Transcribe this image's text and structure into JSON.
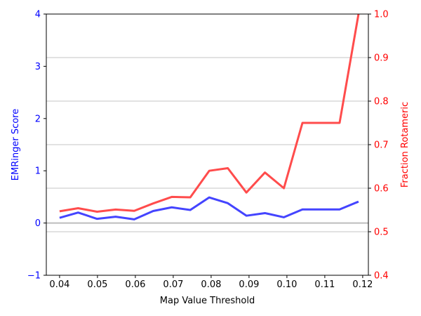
{
  "chart_data": {
    "type": "line",
    "title": "",
    "xlabel": "Map Value Threshold",
    "ylabel_left": "EMRinger Score",
    "ylabel_right": "Fraction Rotameric",
    "xlim": [
      0.0365,
      0.1215
    ],
    "ylim_left": [
      -1,
      4
    ],
    "ylim_right": [
      0.4,
      1.0
    ],
    "x_ticks": [
      "0.04",
      "0.05",
      "0.06",
      "0.07",
      "0.08",
      "0.09",
      "0.10",
      "0.11",
      "0.12"
    ],
    "x_tick_values": [
      0.04,
      0.05,
      0.06,
      0.07,
      0.08,
      0.09,
      0.1,
      0.11,
      0.12
    ],
    "y_ticks_left": [
      "−1",
      "0",
      "1",
      "2",
      "3",
      "4"
    ],
    "y_tick_values_left": [
      -1,
      0,
      1,
      2,
      3,
      4
    ],
    "y_ticks_right": [
      "0.4",
      "0.5",
      "0.6",
      "0.7",
      "0.8",
      "0.9",
      "1.0"
    ],
    "y_tick_values_right": [
      0.4,
      0.5,
      0.6,
      0.7,
      0.8,
      0.9,
      1.0
    ],
    "grid": "horizontal at right-axis ticks",
    "zero_line": true,
    "colors": {
      "left_axis": "#0000ff",
      "right_axis": "#ff0000",
      "emringer_line": "#4444ff",
      "rotameric_line": "#ff4c4c",
      "grid": "#b0b0b0",
      "zero_line": "#bdbdbd"
    },
    "x": [
      0.04,
      0.0449,
      0.0499,
      0.0548,
      0.0597,
      0.0647,
      0.0696,
      0.0745,
      0.0795,
      0.0844,
      0.0893,
      0.0942,
      0.0992,
      0.1041,
      0.109,
      0.1139,
      0.1189
    ],
    "series": [
      {
        "axis": "left",
        "values": [
          0.1,
          0.2,
          0.08,
          0.12,
          0.07,
          0.23,
          0.3,
          0.25,
          0.49,
          0.38,
          0.14,
          0.19,
          0.11,
          0.26,
          0.26,
          0.26,
          0.41
        ]
      },
      {
        "axis": "right",
        "values": [
          0.547,
          0.554,
          0.546,
          0.551,
          0.548,
          0.565,
          0.58,
          0.579,
          0.64,
          0.646,
          0.59,
          0.636,
          0.6,
          0.75,
          0.75,
          0.75,
          1.0
        ]
      }
    ]
  }
}
